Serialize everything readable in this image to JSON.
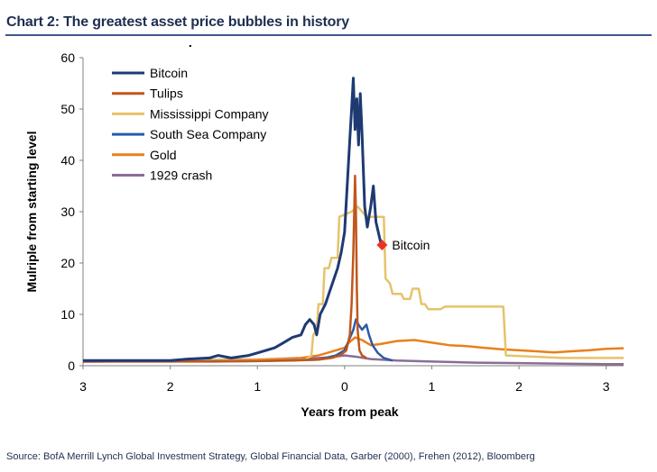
{
  "header": {
    "title": "Chart 2: The greatest asset price bubbles in history"
  },
  "footer": {
    "source": "Source:  BofA Merrill Lynch Global Investment Strategy, Global Financial Data, Garber (2000), Frehen (2012),  Bloomberg"
  },
  "chart_data": {
    "type": "line",
    "title": "Chart 2: The greatest asset price bubbles in history",
    "xlabel": "Years from peak",
    "ylabel": "Mulriple from starting  level",
    "xlim": [
      -3,
      3.2
    ],
    "ylim": [
      0,
      60
    ],
    "x_ticks": [
      -3,
      -2,
      -1,
      0,
      1,
      2,
      3
    ],
    "x_tick_labels": [
      "3",
      "2",
      "1",
      "0",
      "1",
      "2",
      "3"
    ],
    "y_ticks": [
      0,
      10,
      20,
      30,
      40,
      50,
      60
    ],
    "y_tick_labels": [
      "0",
      "10",
      "20",
      "30",
      "40",
      "50",
      "60"
    ],
    "grid": false,
    "legend_position": "top-left",
    "colors": {
      "Bitcoin": "#1f3a73",
      "Tulips": "#c0571c",
      "Mississippi Company": "#e6c36a",
      "South Sea Company": "#2b5aa8",
      "Gold": "#e8801d",
      "1929 crash": "#8a6d96",
      "annotation": "#e8322c"
    },
    "series": [
      {
        "name": "Bitcoin",
        "line_width": 3,
        "points": [
          [
            -3.0,
            1
          ],
          [
            -2.5,
            1
          ],
          [
            -2.0,
            1
          ],
          [
            -1.8,
            1.3
          ],
          [
            -1.55,
            1.5
          ],
          [
            -1.45,
            2
          ],
          [
            -1.3,
            1.5
          ],
          [
            -1.1,
            2
          ],
          [
            -1.0,
            2.5
          ],
          [
            -0.9,
            3
          ],
          [
            -0.8,
            3.5
          ],
          [
            -0.7,
            4.5
          ],
          [
            -0.6,
            5.5
          ],
          [
            -0.5,
            6
          ],
          [
            -0.45,
            8
          ],
          [
            -0.4,
            9
          ],
          [
            -0.35,
            8
          ],
          [
            -0.32,
            6
          ],
          [
            -0.28,
            10
          ],
          [
            -0.22,
            12
          ],
          [
            -0.18,
            14
          ],
          [
            -0.12,
            17
          ],
          [
            -0.08,
            19
          ],
          [
            -0.04,
            22
          ],
          [
            0.0,
            26
          ],
          [
            0.03,
            35
          ],
          [
            0.06,
            44
          ],
          [
            0.08,
            50
          ],
          [
            0.1,
            56
          ],
          [
            0.12,
            46
          ],
          [
            0.14,
            52
          ],
          [
            0.16,
            43
          ],
          [
            0.18,
            53
          ],
          [
            0.2,
            45
          ],
          [
            0.23,
            31
          ],
          [
            0.26,
            27
          ],
          [
            0.3,
            31
          ],
          [
            0.33,
            35
          ],
          [
            0.36,
            28
          ],
          [
            0.4,
            25
          ],
          [
            0.43,
            23
          ]
        ]
      },
      {
        "name": "Tulips",
        "line_width": 2.5,
        "points": [
          [
            -3.0,
            0.8
          ],
          [
            -1.5,
            0.8
          ],
          [
            -0.6,
            1
          ],
          [
            -0.3,
            1.2
          ],
          [
            -0.15,
            1.5
          ],
          [
            -0.05,
            2
          ],
          [
            0.02,
            3
          ],
          [
            0.06,
            6
          ],
          [
            0.08,
            12
          ],
          [
            0.1,
            22
          ],
          [
            0.11,
            30
          ],
          [
            0.12,
            37
          ],
          [
            0.13,
            30
          ],
          [
            0.14,
            15
          ],
          [
            0.15,
            7
          ],
          [
            0.17,
            3
          ],
          [
            0.2,
            2
          ],
          [
            0.25,
            1.5
          ]
        ]
      },
      {
        "name": "Mississippi Company",
        "line_width": 2.5,
        "points": [
          [
            -3.0,
            1
          ],
          [
            -1.0,
            1
          ],
          [
            -0.45,
            1.2
          ],
          [
            -0.38,
            2
          ],
          [
            -0.36,
            6
          ],
          [
            -0.32,
            7
          ],
          [
            -0.3,
            12
          ],
          [
            -0.25,
            12
          ],
          [
            -0.23,
            19
          ],
          [
            -0.18,
            19
          ],
          [
            -0.15,
            21
          ],
          [
            -0.08,
            21
          ],
          [
            -0.06,
            29
          ],
          [
            0.08,
            30
          ],
          [
            0.15,
            31
          ],
          [
            0.2,
            30
          ],
          [
            0.25,
            29
          ],
          [
            0.4,
            29
          ],
          [
            0.45,
            29
          ],
          [
            0.47,
            17
          ],
          [
            0.52,
            16
          ],
          [
            0.55,
            14
          ],
          [
            0.65,
            14
          ],
          [
            0.68,
            13
          ],
          [
            0.75,
            13
          ],
          [
            0.78,
            15
          ],
          [
            0.85,
            15
          ],
          [
            0.88,
            12
          ],
          [
            0.92,
            12
          ],
          [
            0.96,
            11
          ],
          [
            1.1,
            11
          ],
          [
            1.15,
            11.5
          ],
          [
            1.55,
            11.5
          ],
          [
            1.82,
            11.5
          ],
          [
            1.85,
            2
          ],
          [
            2.5,
            1.5
          ],
          [
            3.2,
            1.5
          ]
        ]
      },
      {
        "name": "South Sea Company",
        "line_width": 2.5,
        "points": [
          [
            -3.0,
            0.8
          ],
          [
            -1.0,
            0.9
          ],
          [
            -0.3,
            1.2
          ],
          [
            -0.1,
            2
          ],
          [
            0.0,
            3
          ],
          [
            0.05,
            5
          ],
          [
            0.1,
            7
          ],
          [
            0.13,
            9
          ],
          [
            0.16,
            8
          ],
          [
            0.2,
            7
          ],
          [
            0.25,
            8
          ],
          [
            0.28,
            6
          ],
          [
            0.32,
            4
          ],
          [
            0.38,
            2.5
          ],
          [
            0.45,
            1.5
          ],
          [
            0.55,
            1
          ]
        ]
      },
      {
        "name": "Gold",
        "line_width": 2.5,
        "points": [
          [
            -3.0,
            0.9
          ],
          [
            -2.0,
            1
          ],
          [
            -1.0,
            1.2
          ],
          [
            -0.5,
            1.5
          ],
          [
            -0.3,
            2
          ],
          [
            -0.2,
            2.5
          ],
          [
            -0.1,
            3
          ],
          [
            0.0,
            3.5
          ],
          [
            0.05,
            4.5
          ],
          [
            0.12,
            5.5
          ],
          [
            0.2,
            5
          ],
          [
            0.3,
            4
          ],
          [
            0.4,
            4.2
          ],
          [
            0.5,
            4.5
          ],
          [
            0.6,
            4.8
          ],
          [
            0.8,
            5
          ],
          [
            1.0,
            4.5
          ],
          [
            1.2,
            4
          ],
          [
            1.4,
            3.8
          ],
          [
            1.6,
            3.5
          ],
          [
            1.8,
            3.2
          ],
          [
            2.0,
            3
          ],
          [
            2.2,
            2.8
          ],
          [
            2.4,
            2.6
          ],
          [
            2.6,
            2.8
          ],
          [
            2.8,
            3
          ],
          [
            3.0,
            3.3
          ],
          [
            3.2,
            3.4
          ]
        ]
      },
      {
        "name": "1929 crash",
        "line_width": 2.5,
        "points": [
          [
            -3.0,
            0.8
          ],
          [
            -1.5,
            0.9
          ],
          [
            -1.0,
            1
          ],
          [
            -0.5,
            1.3
          ],
          [
            -0.2,
            1.6
          ],
          [
            0.0,
            2
          ],
          [
            0.15,
            1.7
          ],
          [
            0.3,
            1.3
          ],
          [
            0.6,
            1.0
          ],
          [
            1.0,
            0.8
          ],
          [
            1.5,
            0.6
          ],
          [
            2.0,
            0.5
          ],
          [
            2.5,
            0.4
          ],
          [
            3.0,
            0.3
          ],
          [
            3.2,
            0.3
          ]
        ]
      }
    ],
    "annotations": [
      {
        "text": "Bitcoin",
        "x": 0.43,
        "y": 23.5,
        "marker": "diamond"
      }
    ],
    "marks": [
      {
        "x": -1.77,
        "y": 60
      }
    ]
  }
}
